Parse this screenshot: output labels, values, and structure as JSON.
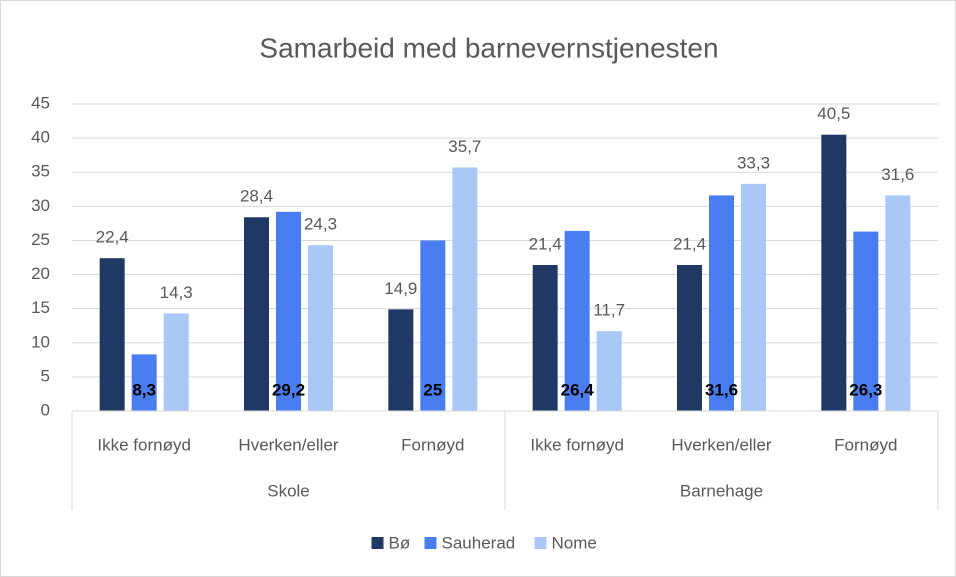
{
  "chart_data": {
    "type": "bar",
    "title": "Samarbeid med barnevernstjenesten",
    "groups": [
      {
        "label": "Skole",
        "categories": [
          "Ikke fornøyd",
          "Hverken/eller",
          "Fornøyd"
        ]
      },
      {
        "label": "Barnehage",
        "categories": [
          "Ikke fornøyd",
          "Hverken/eller",
          "Fornøyd"
        ]
      }
    ],
    "series": [
      {
        "name": "Bø",
        "color": "#203864",
        "values": [
          22.4,
          28.4,
          14.9,
          21.4,
          21.4,
          40.5
        ],
        "value_labels": [
          "22,4",
          "28,4",
          "14,9",
          "21,4",
          "21,4",
          "40,5"
        ]
      },
      {
        "name": "Sauherad",
        "color": "#4a7ef0",
        "values": [
          8.3,
          29.2,
          25,
          26.4,
          31.6,
          26.3
        ],
        "value_labels": [
          "8,3",
          "29,2",
          "25",
          "26,4",
          "31,6",
          "26,3"
        ]
      },
      {
        "name": "Nome",
        "color": "#a9c8f5",
        "values": [
          14.3,
          24.3,
          35.7,
          11.7,
          33.3,
          31.6
        ],
        "value_labels": [
          "14,3",
          "24,3",
          "35,7",
          "11,7",
          "33,3",
          "31,6"
        ]
      }
    ],
    "ylim": [
      0,
      45
    ],
    "yticks": [
      0,
      5,
      10,
      15,
      20,
      25,
      30,
      35,
      40,
      45
    ],
    "grid": true,
    "legend": "bottom"
  }
}
